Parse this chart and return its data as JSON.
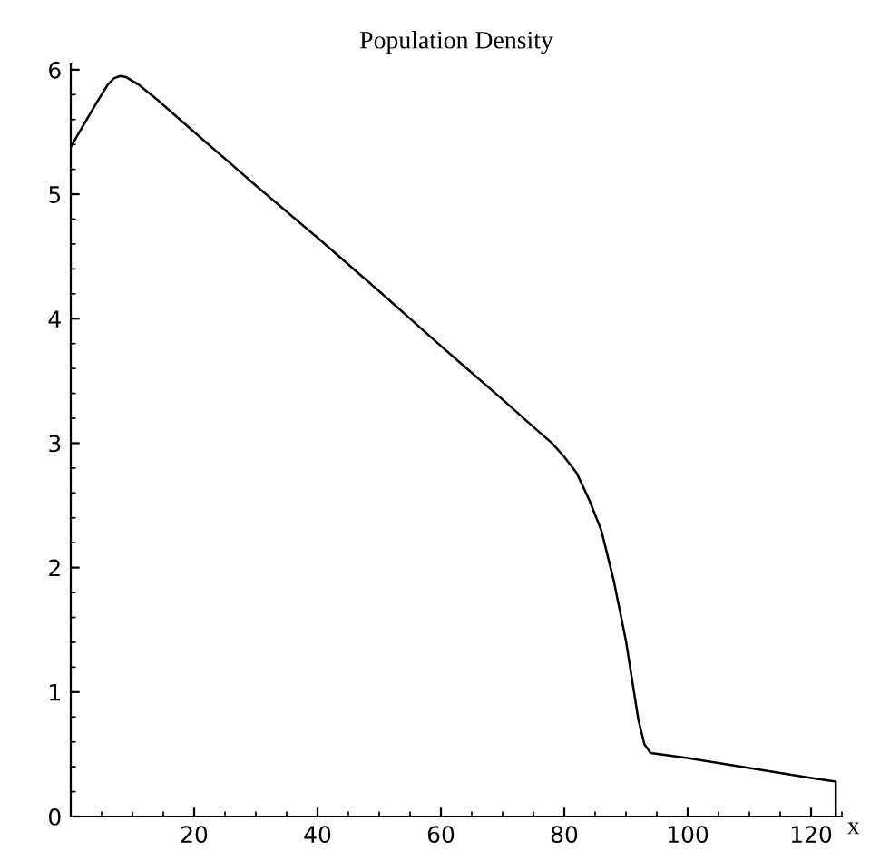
{
  "chart_data": {
    "type": "line",
    "title": "Population Density",
    "xlabel": "x",
    "x": [
      0,
      2,
      4,
      6,
      7,
      8,
      9,
      11,
      14,
      20,
      30,
      40,
      50,
      60,
      70,
      75,
      78,
      80,
      82,
      84,
      86,
      87,
      88,
      90,
      92,
      93,
      94,
      100,
      110,
      120,
      124,
      124
    ],
    "series": [
      {
        "color": "#000000",
        "values": [
          5.38,
          5.55,
          5.72,
          5.88,
          5.93,
          5.95,
          5.94,
          5.88,
          5.76,
          5.5,
          5.07,
          4.65,
          4.22,
          3.78,
          3.35,
          3.13,
          3.0,
          2.89,
          2.76,
          2.55,
          2.3,
          2.1,
          1.9,
          1.41,
          0.78,
          0.58,
          0.51,
          0.47,
          0.39,
          0.31,
          0.28,
          0
        ]
      }
    ],
    "xlim": [
      0,
      125
    ],
    "ylim": [
      0,
      6.05
    ],
    "xticks": [
      20,
      40,
      60,
      80,
      100,
      120
    ],
    "yticks": [
      0,
      1,
      2,
      3,
      4,
      5,
      6
    ],
    "grid": false,
    "legend": false,
    "marker": "none",
    "line_style": "solid"
  }
}
